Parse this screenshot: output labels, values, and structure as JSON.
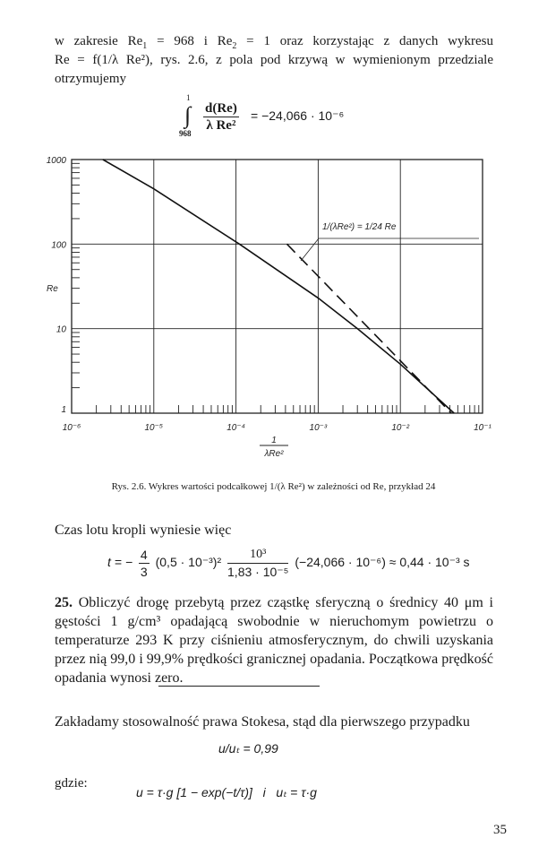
{
  "para1": {
    "line1": "w zakresie Re",
    "re1_sub": "1",
    "line1b": " = 968 i Re",
    "re2_sub": "2",
    "line1c": " = 1 oraz korzystając z danych wykresu",
    "line2": "Re = f(1/λ Re²), rys. 2.6, z pola pod krzywą w wymienionym przedziale",
    "line3": "otrzymujemy"
  },
  "integral": {
    "upper": "1",
    "lower": "968",
    "numerator": "d(Re)",
    "denominator": "λ Re²",
    "result": "= −24,066 · 10⁻⁶"
  },
  "chart_data": {
    "type": "line",
    "xscale": "log",
    "yscale": "log",
    "xlim": [
      1e-06,
      0.1
    ],
    "ylim": [
      1,
      1000
    ],
    "grid": true,
    "xlabel_num": "1",
    "xlabel_den": "λRe²",
    "ylabel": "Re",
    "xticks": [
      "10⁻⁶",
      "10⁻⁵",
      "10⁻⁴",
      "10⁻³",
      "10⁻²",
      "10⁻¹"
    ],
    "yticks": [
      "1",
      "10",
      "100",
      "1000"
    ],
    "annotation": "1/(λRe²) = 1/24 Re",
    "series": [
      {
        "style": "solid",
        "x": [
          2.4e-06,
          1e-05,
          0.00011,
          0.001,
          0.003,
          0.01,
          0.045
        ],
        "y": [
          1000,
          450,
          100,
          23,
          10,
          3.8,
          1
        ]
      },
      {
        "style": "dashed",
        "x": [
          0.000417,
          0.0417
        ],
        "y": [
          100,
          1
        ]
      }
    ]
  },
  "caption": "Rys. 2.6. Wykres wartości podcałkowej 1/(λ Re²) w zależności od Re, przykład 24",
  "para2": "Czas lotu kropli wyniesie więc",
  "eq_t": {
    "lhs": "t = −",
    "frac1_num": "4",
    "frac1_den": "3",
    "mid": "(0,5 · 10⁻³)²",
    "frac2_num": "10³",
    "frac2_den": "1,83 · 10⁻⁵",
    "rhs": "(−24,066 · 10⁻⁶) ≈ 0,44 · 10⁻³ s"
  },
  "problem": {
    "number": "25.",
    "text": " Obliczyć drogę przebytą przez cząstkę sferyczną o średnicy 40 μm i gęstości 1 g/cm³ opadającą swobodnie w nieruchomym powietrzu o temperaturze 293 K przy ciśnieniu atmosferycznym, do chwili uzyskania przez nią 99,0 i 99,9% prędkości granicznej opadania. Początkowa prędkość opadania wynosi zero."
  },
  "para3": "Zakładamy stosowalność prawa Stokesa, stąd dla pierwszego przypadku",
  "eq_ratio": "u/uₜ = 0,99",
  "gdzie": "gdzie:",
  "eq_u": "u = τ·g [1 − exp(−t/τ)]   i   uₜ = τ·g",
  "page_number": "35"
}
